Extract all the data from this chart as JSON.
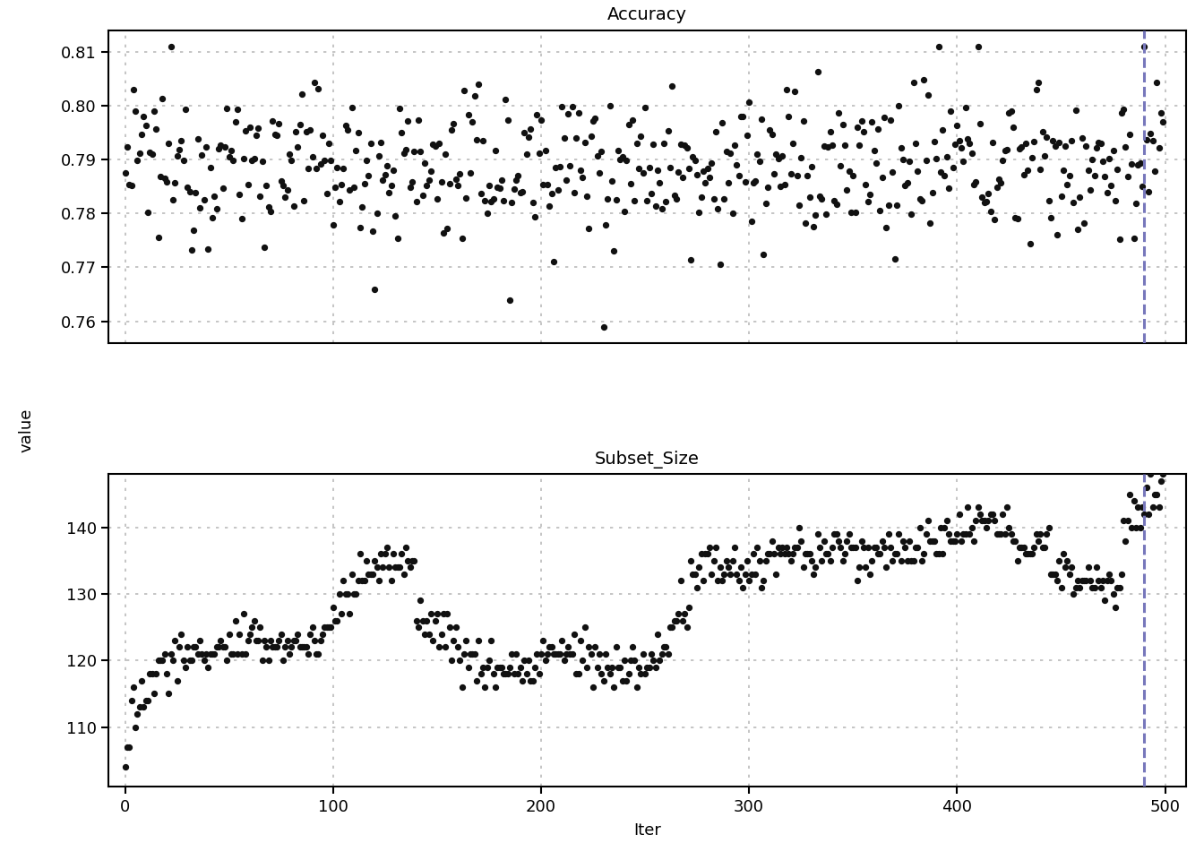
{
  "title_accuracy": "Accuracy",
  "title_subset": "Subset_Size",
  "xlabel": "Iter",
  "ylabel": "value",
  "vline_x": 490,
  "vline_color": "#7777bb",
  "dot_color": "#111111",
  "dot_size": 18,
  "background_color": "#ffffff",
  "spine_color": "#000000",
  "grid_color": "#bbbbbb",
  "acc_ylim": [
    0.756,
    0.814
  ],
  "acc_yticks": [
    0.76,
    0.77,
    0.78,
    0.79,
    0.8,
    0.81
  ],
  "subset_ylim": [
    101,
    148
  ],
  "subset_yticks": [
    110,
    120,
    130,
    140
  ],
  "xlim": [
    -8,
    510
  ],
  "xticks": [
    0,
    100,
    200,
    300,
    400,
    500
  ],
  "n_points": 500
}
